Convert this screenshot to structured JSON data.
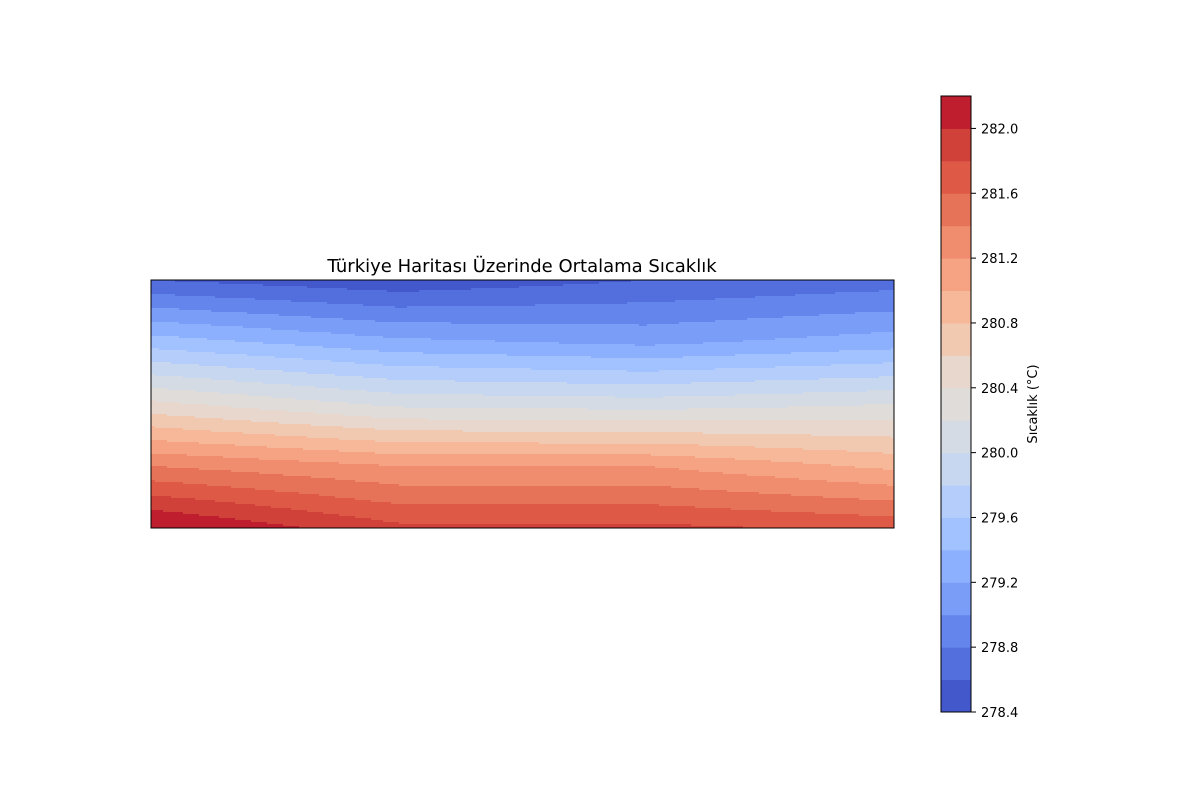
{
  "chart_data": {
    "type": "heatmap",
    "subtype": "filled-contour",
    "title": "Türkiye Haritası Üzerinde Ortalama Sıcaklık",
    "xlabel": "",
    "ylabel": "",
    "grid": false,
    "axis_ticks_visible": false,
    "colormap": "coolwarm",
    "value_range": [
      278.4,
      282.2
    ],
    "level_step": 0.2,
    "levels": [
      278.4,
      278.6,
      278.8,
      279.0,
      279.2,
      279.4,
      279.6,
      279.8,
      280.0,
      280.2,
      280.4,
      280.6,
      280.8,
      281.0,
      281.2,
      281.4,
      281.6,
      281.8,
      282.0,
      282.2
    ],
    "band_colors": [
      "#4358cb",
      "#536edd",
      "#6485ec",
      "#7a9df8",
      "#8db0fe",
      "#a2c1ff",
      "#b5cdfa",
      "#c7d7f0",
      "#d5dbe5",
      "#dfdcd9",
      "#e7d7cd",
      "#f1c9b1",
      "#f6b899",
      "#f6a383",
      "#f18d6f",
      "#e67358",
      "#de5a46",
      "#cf4139",
      "#be1e2e"
    ],
    "grid_x": [
      0,
      1,
      2,
      3
    ],
    "grid_y": [
      0,
      1,
      2,
      3,
      4
    ],
    "field": [
      [
        282.25,
        281.85,
        281.85,
        281.75
      ],
      [
        281.4,
        281.2,
        281.2,
        280.95
      ],
      [
        280.45,
        280.15,
        280.1,
        280.2
      ],
      [
        279.5,
        279.25,
        279.15,
        279.3
      ],
      [
        278.6,
        278.45,
        278.6,
        278.7
      ]
    ],
    "colorbar": {
      "label": "Sıcaklık (°C)",
      "ticks": [
        "278.4",
        "278.8",
        "279.2",
        "279.6",
        "280.0",
        "280.4",
        "280.8",
        "281.2",
        "281.6",
        "282.0"
      ],
      "tick_values": [
        278.4,
        278.8,
        279.2,
        279.6,
        280.0,
        280.4,
        280.8,
        281.2,
        281.6,
        282.0
      ]
    }
  }
}
